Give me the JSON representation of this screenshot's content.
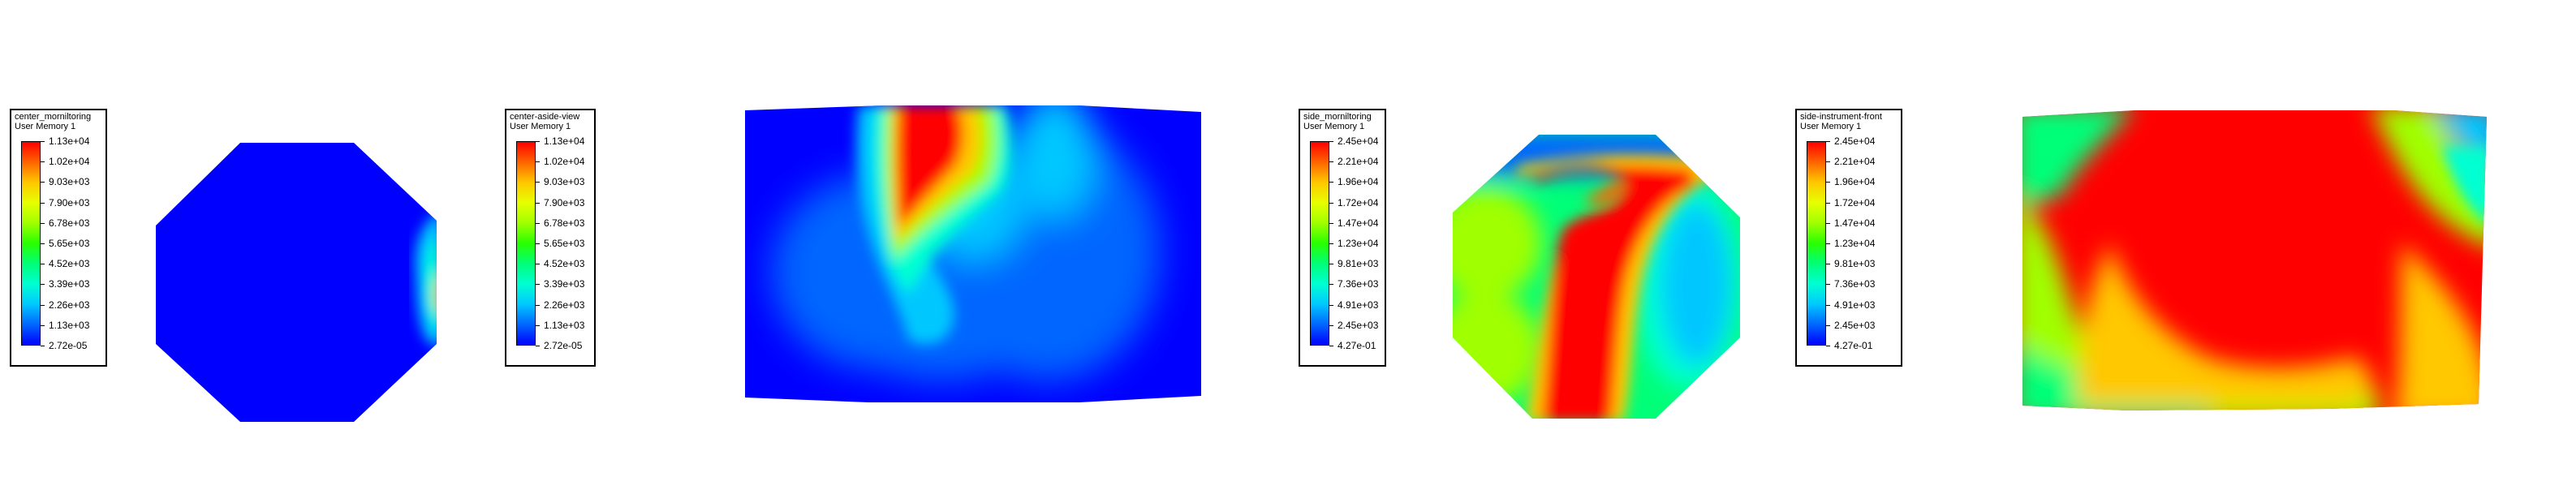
{
  "panels": [
    {
      "title": "center_morniltoring",
      "subtitle": "User Memory 1",
      "ticks": [
        "1.13e+04",
        "1.02e+04",
        "9.03e+03",
        "7.90e+03",
        "6.78e+03",
        "5.65e+03",
        "4.52e+03",
        "3.39e+03",
        "2.26e+03",
        "1.13e+03",
        "2.72e-05"
      ]
    },
    {
      "title": "center-aside-view",
      "subtitle": "User Memory 1",
      "ticks": [
        "1.13e+04",
        "1.02e+04",
        "9.03e+03",
        "7.90e+03",
        "6.78e+03",
        "5.65e+03",
        "4.52e+03",
        "3.39e+03",
        "2.26e+03",
        "1.13e+03",
        "2.72e-05"
      ]
    },
    {
      "title": "side_morniltoring",
      "subtitle": "User Memory 1",
      "ticks": [
        "2.45e+04",
        "2.21e+04",
        "1.96e+04",
        "1.72e+04",
        "1.47e+04",
        "1.23e+04",
        "9.81e+03",
        "7.36e+03",
        "4.91e+03",
        "2.45e+03",
        "4.27e-01"
      ]
    },
    {
      "title": "side-instrument-front",
      "subtitle": "User Memory 1",
      "ticks": [
        "2.45e+04",
        "2.21e+04",
        "1.96e+04",
        "1.72e+04",
        "1.47e+04",
        "1.23e+04",
        "9.81e+03",
        "7.36e+03",
        "4.91e+03",
        "2.45e+03",
        "4.27e-01"
      ]
    }
  ],
  "colormap": [
    "#0000ff",
    "#0066ff",
    "#00c8ff",
    "#00ffd2",
    "#00ff78",
    "#28ff00",
    "#a0ff00",
    "#e6ff00",
    "#ffc800",
    "#ff6400",
    "#ff0000"
  ]
}
